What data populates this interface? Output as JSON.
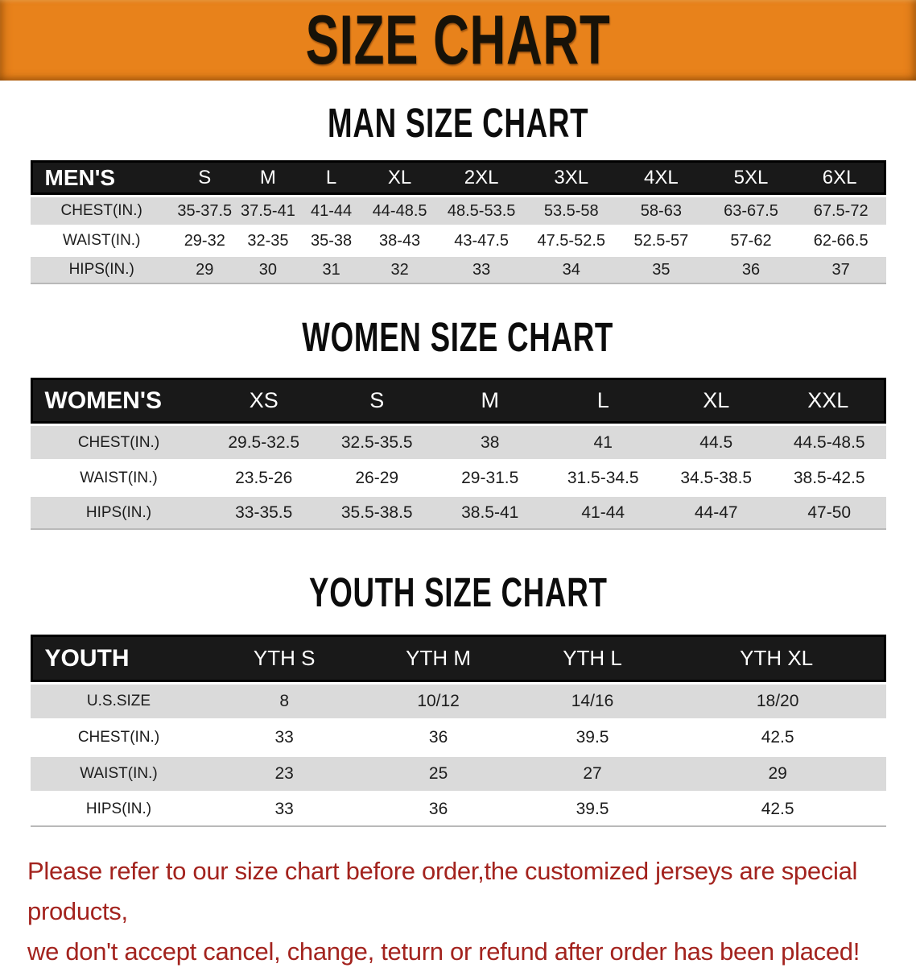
{
  "banner": {
    "title": "SIZE CHART"
  },
  "sections": [
    {
      "heading": "MAN SIZE CHART",
      "table": {
        "label": "MEN'S",
        "columns": [
          "S",
          "M",
          "L",
          "XL",
          "2XL",
          "3XL",
          "4XL",
          "5XL",
          "6XL"
        ],
        "rows": [
          {
            "label": "CHEST(IN.)",
            "values": [
              "35-37.5",
              "37.5-41",
              "41-44",
              "44-48.5",
              "48.5-53.5",
              "53.5-58",
              "58-63",
              "63-67.5",
              "67.5-72"
            ]
          },
          {
            "label": "WAIST(IN.)",
            "values": [
              "29-32",
              "32-35",
              "35-38",
              "38-43",
              "43-47.5",
              "47.5-52.5",
              "52.5-57",
              "57-62",
              "62-66.5"
            ]
          },
          {
            "label": "HIPS(IN.)",
            "values": [
              "29",
              "30",
              "31",
              "32",
              "33",
              "34",
              "35",
              "36",
              "37"
            ]
          }
        ]
      }
    },
    {
      "heading": "WOMEN SIZE CHART",
      "table": {
        "label": "WOMEN'S",
        "columns": [
          "XS",
          "S",
          "M",
          "L",
          "XL",
          "XXL"
        ],
        "rows": [
          {
            "label": "CHEST(IN.)",
            "values": [
              "29.5-32.5",
              "32.5-35.5",
              "38",
              "41",
              "44.5",
              "44.5-48.5"
            ]
          },
          {
            "label": "WAIST(IN.)",
            "values": [
              "23.5-26",
              "26-29",
              "29-31.5",
              "31.5-34.5",
              "34.5-38.5",
              "38.5-42.5"
            ]
          },
          {
            "label": "HIPS(IN.)",
            "values": [
              "33-35.5",
              "35.5-38.5",
              "38.5-41",
              "41-44",
              "44-47",
              "47-50"
            ]
          }
        ]
      }
    },
    {
      "heading": "YOUTH SIZE CHART",
      "table": {
        "label": "YOUTH",
        "columns": [
          "YTH S",
          "YTH M",
          "YTH L",
          "YTH XL"
        ],
        "rows": [
          {
            "label": "U.S.SIZE",
            "values": [
              "8",
              "10/12",
              "14/16",
              "18/20"
            ]
          },
          {
            "label": "CHEST(IN.)",
            "values": [
              "33",
              "36",
              "39.5",
              "42.5"
            ]
          },
          {
            "label": "WAIST(IN.)",
            "values": [
              "23",
              "25",
              "27",
              "29"
            ]
          },
          {
            "label": "HIPS(IN.)",
            "values": [
              "33",
              "36",
              "39.5",
              "42.5"
            ]
          }
        ]
      }
    }
  ],
  "footer": {
    "line1": "Please refer to our size chart before order,the customized jerseys are special products,",
    "line2": "we don't accept cancel, change, teturn or refund after order has been placed!"
  },
  "colors": {
    "banner_bg": "#E8821B",
    "banner_text": "#171208",
    "header_bg": "#191919",
    "header_text": "#FFFFFF",
    "row_gray": "#DADADA",
    "row_white": "#FFFFFF",
    "footer_red": "#A3231E",
    "body_text": "#1C1C1C"
  }
}
